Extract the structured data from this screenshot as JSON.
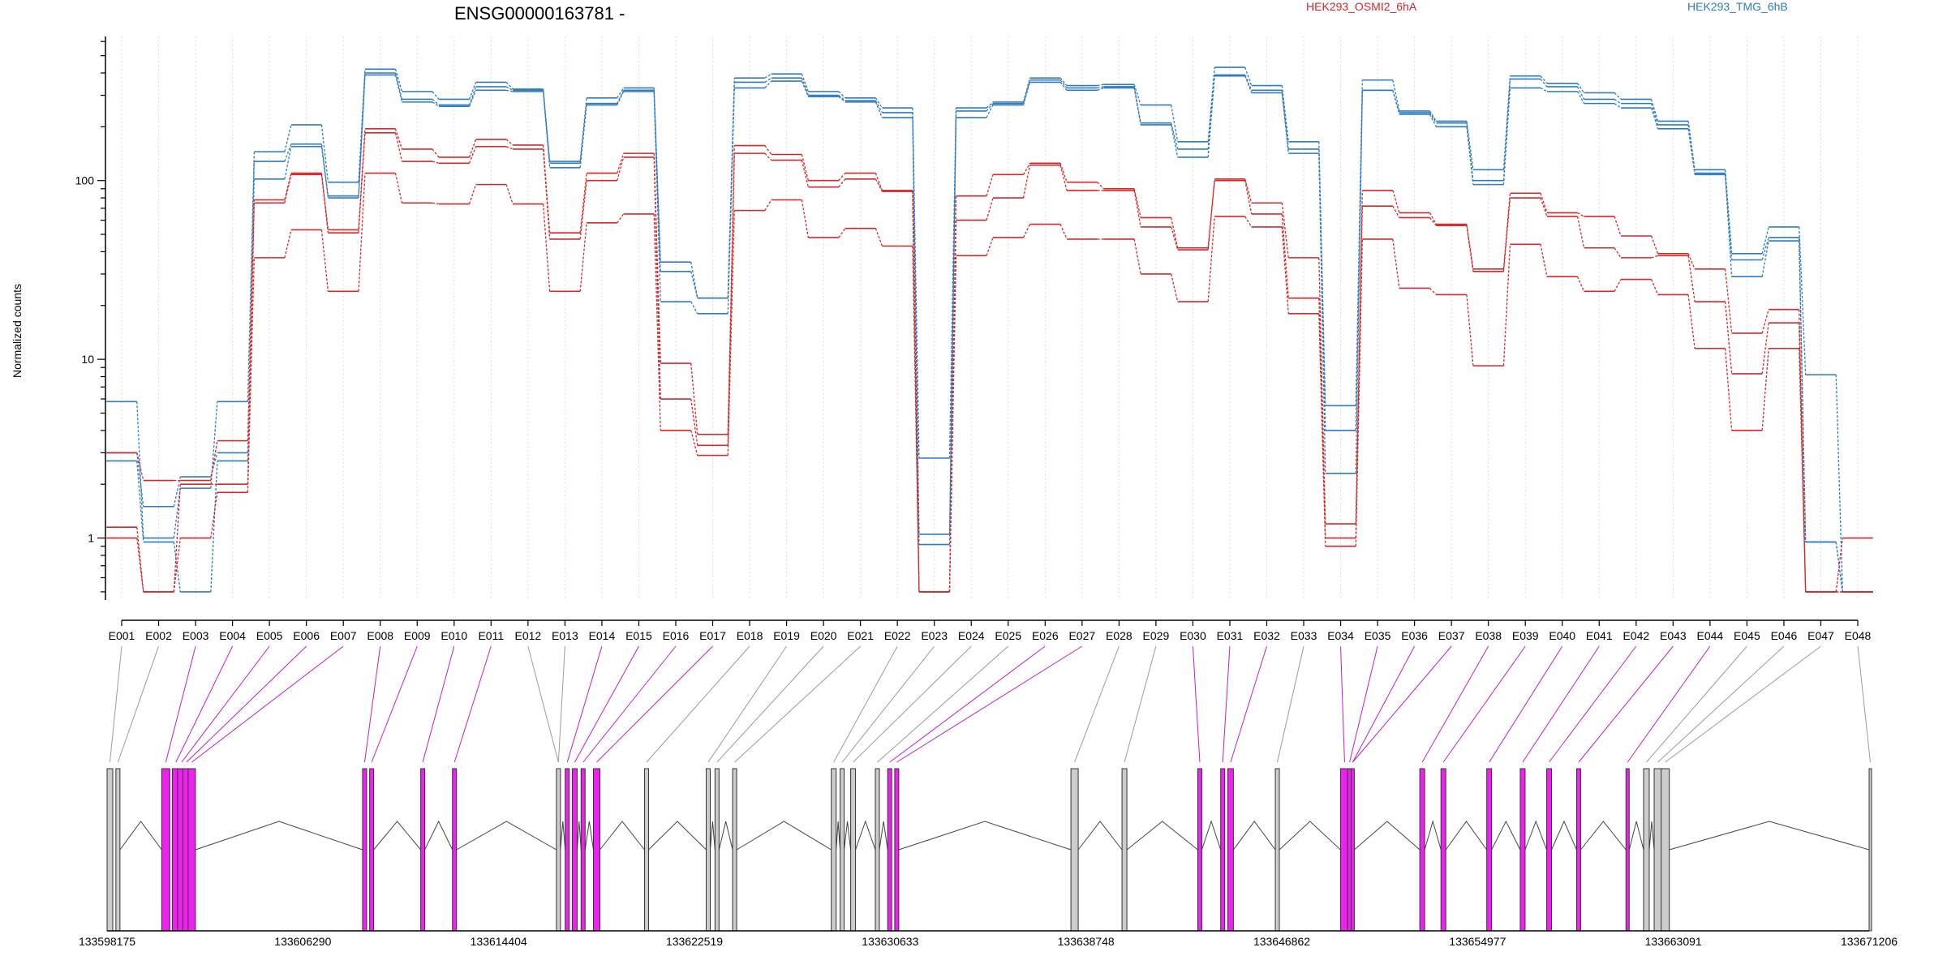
{
  "chart_data": {
    "type": "line",
    "title": "ENSG00000163781 -",
    "ylabel": "Normalized counts",
    "y_scale": "log",
    "ylim": [
      0.45,
      640
    ],
    "y_ticks": [
      {
        "value": 1,
        "label": "1"
      },
      {
        "value": 10,
        "label": "10"
      },
      {
        "value": 100,
        "label": "100"
      }
    ],
    "grid": "vertical dotted lines at each exon bin",
    "legend_position": "top",
    "legend": [
      {
        "label": "HEK293_OSMI2_6hA",
        "color": "#d62728"
      },
      {
        "label": "HEK293_TMG_6hB",
        "color": "#2f7bbd"
      }
    ],
    "categories": [
      "E001",
      "E002",
      "E003",
      "E004",
      "E005",
      "E006",
      "E007",
      "E008",
      "E009",
      "E010",
      "E011",
      "E012",
      "E013",
      "E014",
      "E015",
      "E016",
      "E017",
      "E018",
      "E019",
      "E020",
      "E021",
      "E022",
      "E023",
      "E024",
      "E025",
      "E026",
      "E027",
      "E028",
      "E029",
      "E030",
      "E031",
      "E032",
      "E033",
      "E034",
      "E035",
      "E036",
      "E037",
      "E038",
      "E039",
      "E040",
      "E041",
      "E042",
      "E043",
      "E044",
      "E045",
      "E046",
      "E047",
      "E048"
    ],
    "series": [
      {
        "group": "HEK293_TMG_6hB",
        "color": "#2f7bbd",
        "values": [
          5.8,
          1.0,
          1.9,
          5.8,
          145,
          205,
          98,
          420,
          315,
          285,
          355,
          325,
          128,
          290,
          330,
          35,
          22,
          375,
          395,
          315,
          290,
          255,
          2.8,
          255,
          275,
          375,
          340,
          345,
          265,
          165,
          430,
          340,
          165,
          5.5,
          365,
          245,
          215,
          115,
          385,
          350,
          310,
          285,
          215,
          115,
          39,
          55,
          8.2,
          0.5
        ]
      },
      {
        "group": "HEK293_TMG_6hB",
        "color": "#2f7bbd",
        "values": [
          3.0,
          1.5,
          2.2,
          3.0,
          128,
          160,
          82,
          400,
          285,
          265,
          335,
          320,
          125,
          270,
          320,
          31,
          22,
          355,
          375,
          300,
          280,
          240,
          1.05,
          245,
          270,
          365,
          330,
          335,
          210,
          150,
          390,
          320,
          150,
          4.0,
          320,
          240,
          210,
          100,
          370,
          335,
          285,
          270,
          205,
          110,
          36,
          48,
          0.95,
          0.5
        ]
      },
      {
        "group": "HEK293_TMG_6hB",
        "color": "#2f7bbd",
        "values": [
          2.7,
          0.95,
          0.5,
          2.7,
          102,
          155,
          80,
          390,
          275,
          260,
          320,
          315,
          118,
          265,
          315,
          21,
          18,
          330,
          360,
          295,
          275,
          225,
          0.92,
          225,
          265,
          355,
          320,
          330,
          205,
          135,
          385,
          310,
          142,
          2.3,
          320,
          235,
          200,
          95,
          330,
          315,
          270,
          255,
          195,
          108,
          29,
          46,
          0.95,
          0.5
        ]
      },
      {
        "group": "HEK293_OSMI2_6hA",
        "color": "#d62728",
        "values": [
          3.0,
          2.1,
          2.1,
          3.5,
          78,
          110,
          53,
          195,
          150,
          135,
          170,
          158,
          51,
          110,
          142,
          9.5,
          3.8,
          157,
          140,
          100,
          110,
          88,
          0.5,
          82,
          108,
          125,
          98,
          90,
          62,
          42,
          102,
          75,
          37,
          1.2,
          88,
          66,
          57,
          32,
          85,
          66,
          63,
          49,
          39,
          32,
          14,
          19,
          0.5,
          1.0
        ]
      },
      {
        "group": "HEK293_OSMI2_6hA",
        "color": "#d62728",
        "values": [
          1.15,
          0.5,
          2.0,
          2.0,
          75,
          108,
          51,
          185,
          128,
          125,
          155,
          150,
          47,
          100,
          135,
          6.0,
          3.3,
          142,
          130,
          92,
          102,
          87,
          0.5,
          60,
          80,
          122,
          88,
          88,
          55,
          41,
          100,
          65,
          22,
          1.0,
          72,
          62,
          56,
          31,
          80,
          63,
          42,
          37,
          38,
          21,
          8.3,
          16,
          0.5,
          0.5
        ]
      },
      {
        "group": "HEK293_OSMI2_6hA",
        "color": "#d62728",
        "values": [
          1.0,
          0.5,
          1.0,
          1.8,
          37,
          53,
          24,
          110,
          75,
          74,
          95,
          74,
          24,
          58,
          65,
          4.0,
          2.9,
          68,
          78,
          48,
          54,
          43,
          0.5,
          38,
          48,
          57,
          47,
          47,
          30,
          21,
          63,
          55,
          18,
          0.9,
          47,
          25,
          23,
          9.2,
          44,
          29,
          24,
          28,
          23,
          11.5,
          4.0,
          11.5,
          0.5,
          0.5
        ]
      }
    ],
    "gene_model": {
      "coordinate_ticks": [
        "133598175",
        "133606290",
        "133614404",
        "133622519",
        "133630633",
        "133638748",
        "133646862",
        "133654977",
        "133663091",
        "133671206"
      ],
      "colors": {
        "exon_default": "#cccccc",
        "exon_highlight": "#ee22ee"
      }
    }
  }
}
